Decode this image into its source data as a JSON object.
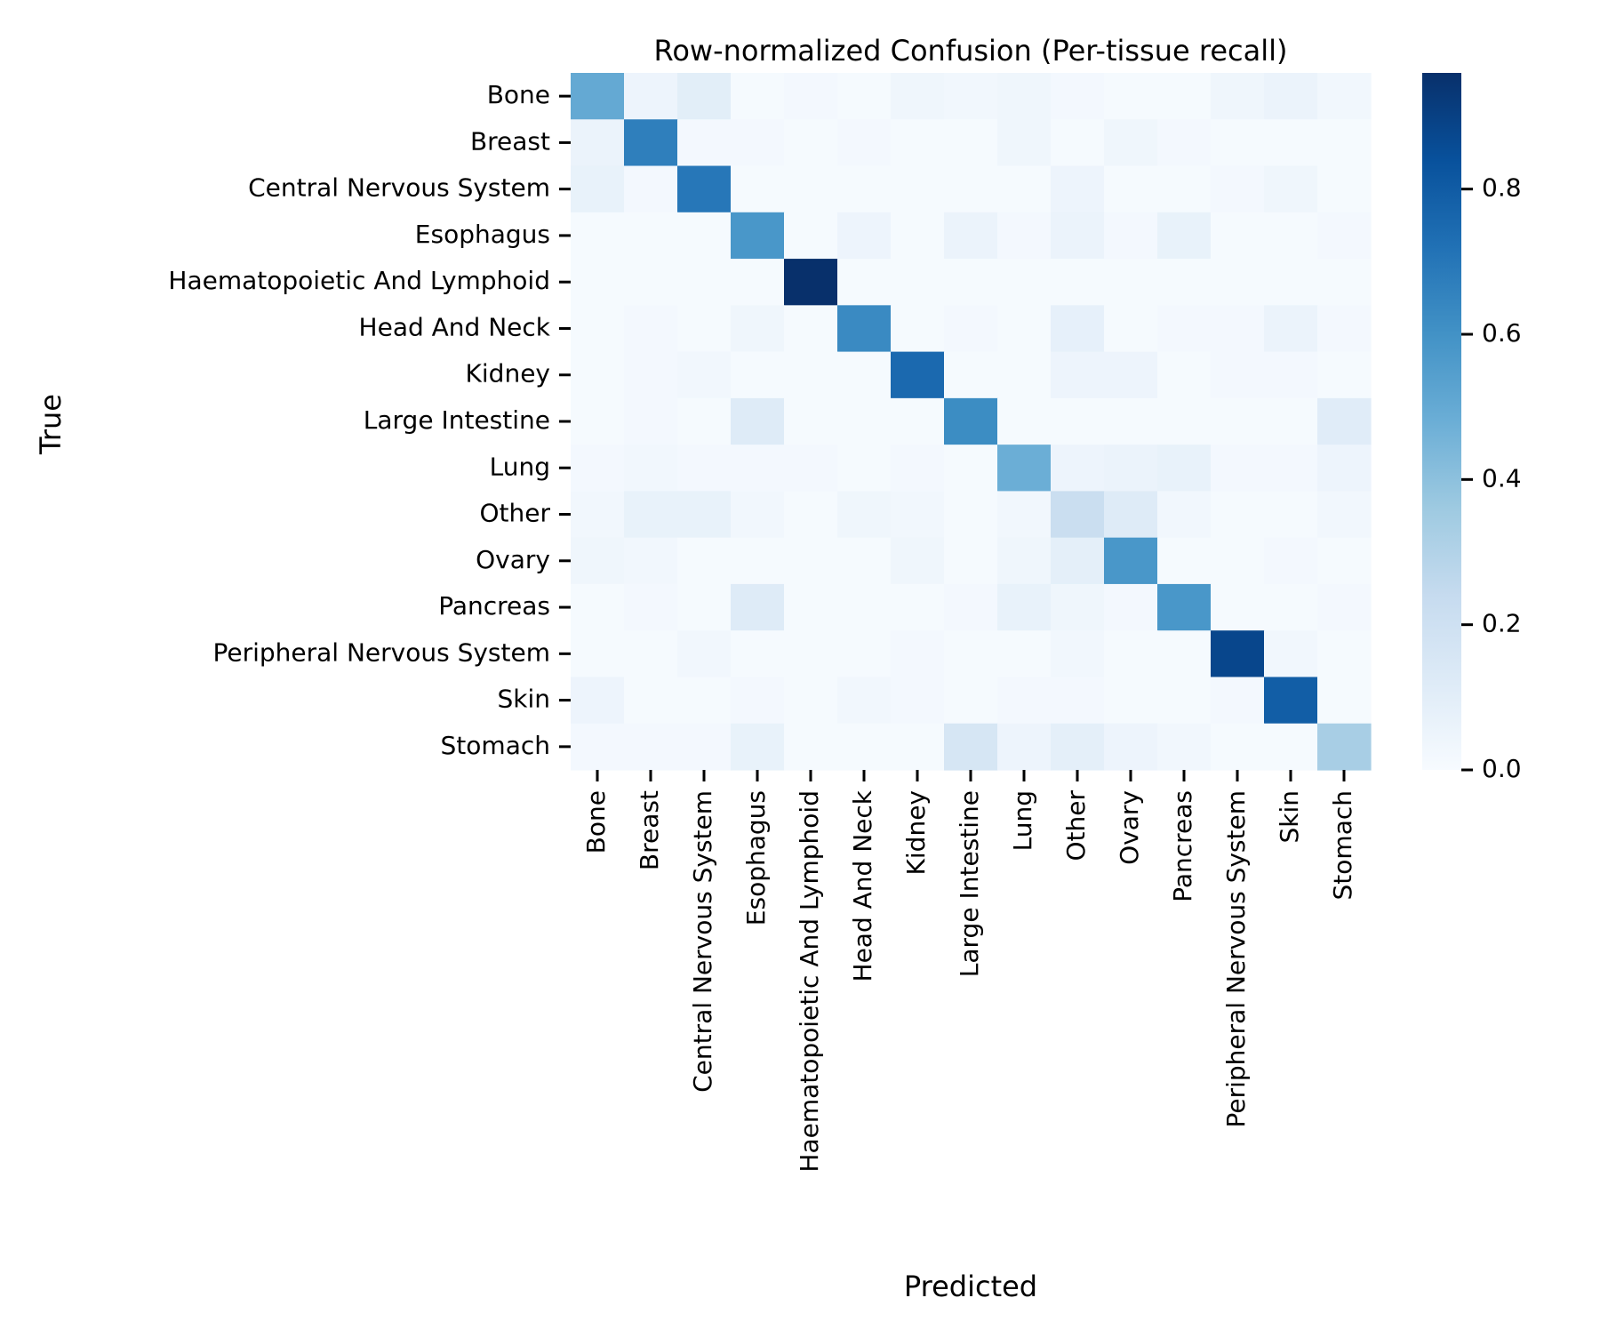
{
  "chart_data": {
    "type": "heatmap",
    "title": "Row-normalized Confusion (Per-tissue recall)",
    "xlabel": "Predicted",
    "ylabel": "True",
    "categories": [
      "Bone",
      "Breast",
      "Central Nervous System",
      "Esophagus",
      "Haematopoietic And Lymphoid",
      "Head And Neck",
      "Kidney",
      "Large Intestine",
      "Lung",
      "Other",
      "Ovary",
      "Pancreas",
      "Peripheral Nervous System",
      "Skin",
      "Stomach"
    ],
    "values": [
      [
        0.5,
        0.05,
        0.1,
        0.01,
        0.02,
        0.01,
        0.04,
        0.03,
        0.04,
        0.02,
        0.01,
        0.01,
        0.04,
        0.06,
        0.03
      ],
      [
        0.06,
        0.67,
        0.02,
        0.02,
        0.01,
        0.02,
        0.01,
        0.01,
        0.04,
        0.01,
        0.04,
        0.02,
        0.01,
        0.01,
        0.01
      ],
      [
        0.07,
        0.02,
        0.7,
        0.01,
        0.01,
        0.01,
        0.01,
        0.01,
        0.01,
        0.05,
        0.01,
        0.01,
        0.02,
        0.04,
        0.01
      ],
      [
        0.01,
        0.01,
        0.01,
        0.58,
        0.01,
        0.05,
        0.01,
        0.06,
        0.02,
        0.06,
        0.02,
        0.07,
        0.01,
        0.01,
        0.02
      ],
      [
        0.01,
        0.01,
        0.01,
        0.01,
        0.96,
        0.01,
        0.01,
        0.01,
        0.01,
        0.01,
        0.01,
        0.01,
        0.01,
        0.01,
        0.01
      ],
      [
        0.01,
        0.02,
        0.01,
        0.04,
        0.01,
        0.63,
        0.01,
        0.02,
        0.01,
        0.08,
        0.01,
        0.02,
        0.02,
        0.06,
        0.02
      ],
      [
        0.01,
        0.02,
        0.03,
        0.01,
        0.01,
        0.01,
        0.75,
        0.01,
        0.01,
        0.05,
        0.05,
        0.01,
        0.02,
        0.02,
        0.01
      ],
      [
        0.01,
        0.02,
        0.01,
        0.12,
        0.01,
        0.01,
        0.01,
        0.62,
        0.01,
        0.01,
        0.01,
        0.01,
        0.01,
        0.01,
        0.11
      ],
      [
        0.02,
        0.03,
        0.02,
        0.02,
        0.02,
        0.01,
        0.02,
        0.01,
        0.48,
        0.05,
        0.06,
        0.07,
        0.02,
        0.02,
        0.05
      ],
      [
        0.03,
        0.07,
        0.07,
        0.03,
        0.01,
        0.04,
        0.03,
        0.01,
        0.03,
        0.22,
        0.12,
        0.03,
        0.01,
        0.01,
        0.03
      ],
      [
        0.04,
        0.03,
        0.01,
        0.01,
        0.01,
        0.01,
        0.04,
        0.01,
        0.04,
        0.09,
        0.58,
        0.01,
        0.01,
        0.02,
        0.01
      ],
      [
        0.01,
        0.02,
        0.01,
        0.12,
        0.01,
        0.01,
        0.01,
        0.02,
        0.07,
        0.04,
        0.02,
        0.58,
        0.01,
        0.01,
        0.02
      ],
      [
        0.01,
        0.01,
        0.03,
        0.01,
        0.01,
        0.01,
        0.02,
        0.01,
        0.01,
        0.03,
        0.01,
        0.01,
        0.88,
        0.03,
        0.01
      ],
      [
        0.05,
        0.01,
        0.01,
        0.02,
        0.01,
        0.03,
        0.02,
        0.01,
        0.02,
        0.02,
        0.01,
        0.01,
        0.02,
        0.79,
        0.01
      ],
      [
        0.02,
        0.02,
        0.02,
        0.07,
        0.01,
        0.01,
        0.01,
        0.16,
        0.05,
        0.09,
        0.05,
        0.03,
        0.01,
        0.01,
        0.33
      ]
    ],
    "colorscale": "Blues",
    "vmin": 0.0,
    "vmax": 0.96,
    "colorbar_ticks": [
      "0.0",
      "0.2",
      "0.4",
      "0.6",
      "0.8"
    ],
    "colorbar_tick_values": [
      0.0,
      0.2,
      0.4,
      0.6,
      0.8
    ],
    "colors": {
      "low": "#f7fbff",
      "high": "#08306b"
    },
    "grid": false,
    "legend": "right colorbar"
  }
}
